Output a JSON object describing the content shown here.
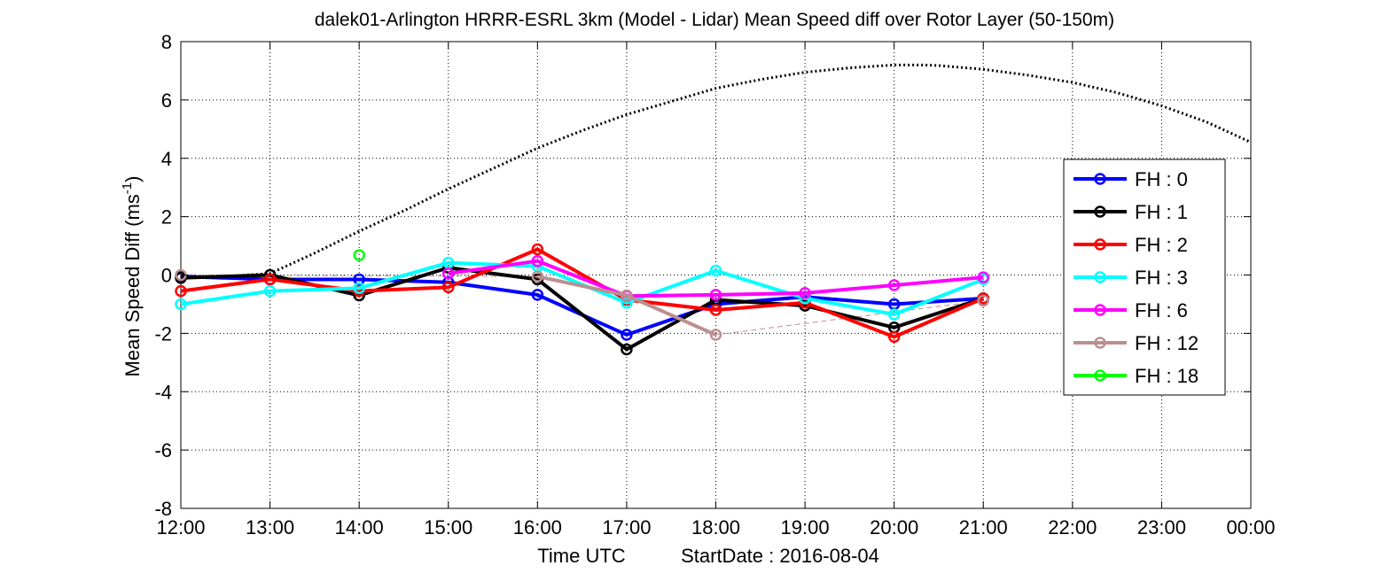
{
  "chart_data": {
    "type": "line",
    "title": "dalek01-Arlington HRRR-ESRL 3km (Model - Lidar) Mean Speed diff over Rotor Layer (50-150m)",
    "xlabel": "Time UTC",
    "xlabel_extra": "StartDate : 2016-08-04",
    "ylabel_main": "Mean Speed Diff (ms",
    "ylabel_sup": "-1",
    "ylabel_close": ")",
    "xlim": [
      12,
      24
    ],
    "ylim": [
      -8,
      8
    ],
    "x_ticks": [
      12,
      13,
      14,
      15,
      16,
      17,
      18,
      19,
      20,
      21,
      22,
      23,
      24
    ],
    "x_tick_labels": [
      "12:00",
      "13:00",
      "14:00",
      "15:00",
      "16:00",
      "17:00",
      "18:00",
      "19:00",
      "20:00",
      "21:00",
      "22:00",
      "23:00",
      "00:00"
    ],
    "y_ticks": [
      -8,
      -6,
      -4,
      -2,
      0,
      2,
      4,
      6,
      8
    ],
    "y_tick_labels": [
      "-8",
      "-6",
      "-4",
      "-2",
      "0",
      "2",
      "4",
      "6",
      "8"
    ],
    "grid": true,
    "legend_position": "right",
    "series": [
      {
        "name": "FH : 0",
        "color": "#0000ff",
        "x": [
          12,
          13,
          14,
          15,
          16,
          17,
          18,
          19,
          20,
          21
        ],
        "values": [
          -0.05,
          -0.15,
          -0.15,
          -0.25,
          -0.68,
          -2.05,
          -1.0,
          -0.75,
          -1.0,
          -0.8
        ]
      },
      {
        "name": "FH : 1",
        "color": "#000000",
        "x": [
          12,
          13,
          14,
          15,
          16,
          17,
          18,
          19,
          20,
          21
        ],
        "values": [
          -0.1,
          0.0,
          -0.7,
          0.25,
          -0.15,
          -2.55,
          -0.85,
          -1.05,
          -1.8,
          -0.8
        ]
      },
      {
        "name": "FH : 2",
        "color": "#ff0000",
        "x": [
          12,
          13,
          14,
          15,
          16,
          17,
          18,
          19,
          20,
          21
        ],
        "values": [
          -0.55,
          -0.15,
          -0.55,
          -0.42,
          0.88,
          -0.85,
          -1.2,
          -0.95,
          -2.12,
          -0.8
        ]
      },
      {
        "name": "FH : 3",
        "color": "#00ffff",
        "x": [
          12,
          13,
          14,
          15,
          16,
          17,
          18,
          19,
          20,
          21
        ],
        "values": [
          -1.0,
          -0.55,
          -0.45,
          0.42,
          0.3,
          -0.95,
          0.15,
          -0.8,
          -1.35,
          -0.15
        ]
      },
      {
        "name": "FH : 6",
        "color": "#ff00ff",
        "x": [
          15,
          16,
          17,
          18,
          19,
          20,
          21
        ],
        "values": [
          0.05,
          0.48,
          -0.72,
          -0.68,
          -0.62,
          -0.35,
          -0.08
        ]
      },
      {
        "name": "FH : 12",
        "color": "#bc8f8f",
        "x": [
          12,
          16,
          17,
          18,
          21
        ],
        "values": [
          0.0,
          -0.05,
          -0.7,
          -2.05,
          -0.88
        ]
      },
      {
        "name": "FH : 18",
        "color": "#00ff00",
        "x": [
          14
        ],
        "values": [
          0.68
        ]
      }
    ],
    "reference_curve": {
      "color": "#000000",
      "x": [
        12,
        12.5,
        13,
        13.5,
        14,
        14.5,
        15,
        15.5,
        16,
        16.5,
        17,
        17.5,
        18,
        18.5,
        19,
        19.5,
        20,
        20.3,
        20.5,
        21,
        21.5,
        22,
        22.5,
        23,
        23.5,
        24
      ],
      "values": [
        -0.05,
        -0.05,
        0.05,
        0.75,
        1.5,
        2.2,
        2.95,
        3.65,
        4.35,
        4.95,
        5.5,
        5.95,
        6.4,
        6.7,
        6.95,
        7.1,
        7.2,
        7.2,
        7.18,
        7.05,
        6.85,
        6.6,
        6.25,
        5.8,
        5.25,
        4.55
      ]
    }
  }
}
